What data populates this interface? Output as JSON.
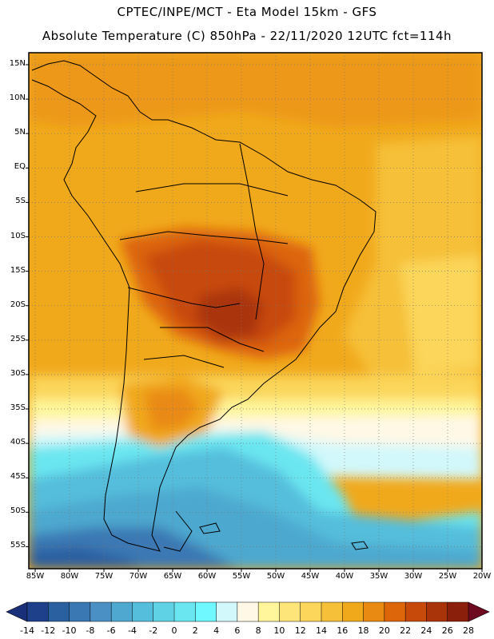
{
  "header": {
    "line1": "CPTEC/INPE/MCT -  Eta Model 15km - GFS",
    "line2": "Absolute Temperature (C) 850hPa - 22/11/2020 12UTC fct=114h"
  },
  "axes": {
    "lat_labels": [
      "15N",
      "10N",
      "5N",
      "EQ",
      "5S",
      "10S",
      "15S",
      "20S",
      "25S",
      "30S",
      "35S",
      "40S",
      "45S",
      "50S",
      "55S"
    ],
    "lon_labels": [
      "85W",
      "80W",
      "75W",
      "70W",
      "65W",
      "60W",
      "55W",
      "50W",
      "45W",
      "40W",
      "35W",
      "30W",
      "25W",
      "20W"
    ]
  },
  "colorbar": {
    "labels": [
      "-14",
      "-12",
      "-10",
      "-8",
      "-6",
      "-4",
      "-2",
      "0",
      "2",
      "4",
      "6",
      "8",
      "10",
      "12",
      "14",
      "16",
      "18",
      "20",
      "22",
      "24",
      "26",
      "28"
    ],
    "colors": [
      "#1e3f8a",
      "#2a5fa0",
      "#3a78b4",
      "#4a90c4",
      "#4ea8cf",
      "#55bedc",
      "#5fd2e6",
      "#6ae6f0",
      "#6ff8ff",
      "#d2f8fb",
      "#fff8e6",
      "#fff59a",
      "#fde57a",
      "#fbd65a",
      "#f6c038",
      "#f1a91c",
      "#e98a12",
      "#dd650a",
      "#c84a0a",
      "#aa340a",
      "#8a1f0c"
    ],
    "low_color": "#1a2f7a",
    "high_color": "#6e0a20"
  }
}
